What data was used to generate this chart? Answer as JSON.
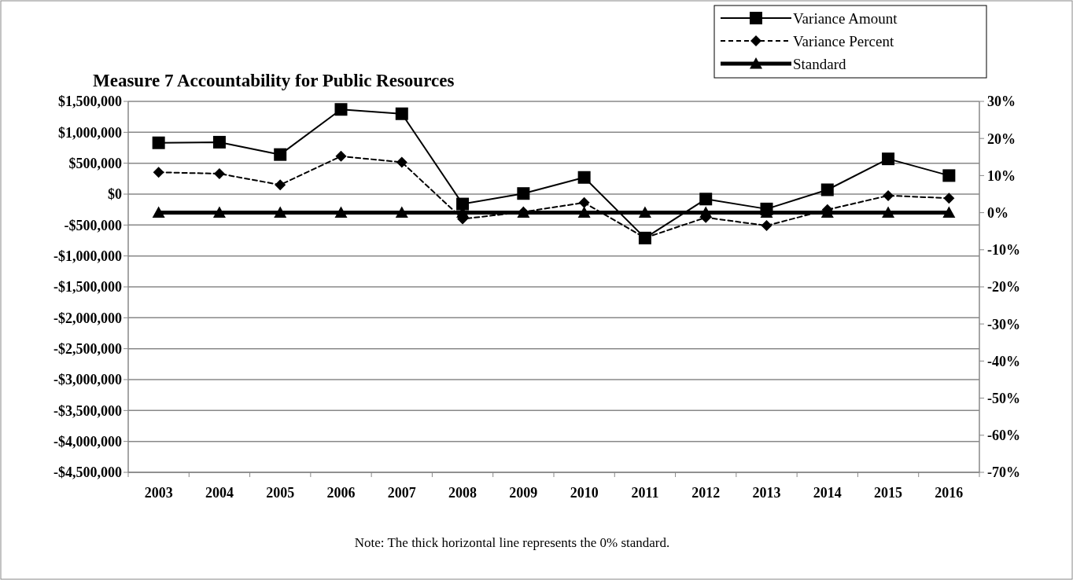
{
  "chart_data": {
    "type": "line",
    "title": "Measure 7 Accountability for Public Resources",
    "categories": [
      "2003",
      "2004",
      "2005",
      "2006",
      "2007",
      "2008",
      "2009",
      "2010",
      "2011",
      "2012",
      "2013",
      "2014",
      "2015",
      "2016"
    ],
    "series": [
      {
        "name": "Variance Amount",
        "color": "#000000",
        "marker": "square",
        "line_style": "solid",
        "values": [
          830000,
          840000,
          640000,
          1370000,
          1300000,
          -160000,
          10000,
          270000,
          -710000,
          -80000,
          -240000,
          70000,
          570000,
          300000
        ]
      },
      {
        "name": "Variance Percent",
        "color": "#000000",
        "marker": "diamond",
        "line_style": "dashed",
        "axis": "y2",
        "values": [
          10.9,
          10.5,
          7.5,
          15.2,
          13.6,
          -1.7,
          0.2,
          2.7,
          -6.8,
          -1.3,
          -3.5,
          0.8,
          4.6,
          3.9
        ]
      },
      {
        "name": "Standard",
        "color": "#000000",
        "marker": "triangle",
        "line_style": "solid",
        "axis": "y2",
        "values": [
          0,
          0,
          0,
          0,
          0,
          0,
          0,
          0,
          0,
          0,
          0,
          0,
          0,
          0
        ]
      }
    ],
    "ylim": [
      -4500000,
      1500000
    ],
    "yticks": [
      {
        "value": -4500000,
        "label": "-$4,500,000"
      },
      {
        "value": -4000000,
        "label": "-$4,000,000"
      },
      {
        "value": -3500000,
        "label": "-$3,500,000"
      },
      {
        "value": -3000000,
        "label": "-$3,000,000"
      },
      {
        "value": -2500000,
        "label": "-$2,500,000"
      },
      {
        "value": -2000000,
        "label": "-$2,000,000"
      },
      {
        "value": -1500000,
        "label": "-$1,500,000"
      },
      {
        "value": -1000000,
        "label": "-$1,000,000"
      },
      {
        "value": -500000,
        "label": "-$500,000"
      },
      {
        "value": 0,
        "label": "$0"
      },
      {
        "value": 500000,
        "label": "$500,000"
      },
      {
        "value": 1000000,
        "label": "$1,000,000"
      },
      {
        "value": 1500000,
        "label": "$1,500,000"
      }
    ],
    "y2lim": [
      -70,
      30
    ],
    "y2ticks": [
      {
        "value": -70,
        "label": "-70%"
      },
      {
        "value": -60,
        "label": "-60%"
      },
      {
        "value": -50,
        "label": "-50%"
      },
      {
        "value": -40,
        "label": "-40%"
      },
      {
        "value": -30,
        "label": "-30%"
      },
      {
        "value": -20,
        "label": "-20%"
      },
      {
        "value": -10,
        "label": "-10%"
      },
      {
        "value": 0,
        "label": "0%"
      },
      {
        "value": 10,
        "label": "10%"
      },
      {
        "value": 20,
        "label": "20%"
      },
      {
        "value": 30,
        "label": "30%"
      }
    ],
    "grid": "y",
    "legend": "top right",
    "annotations": [
      "Note: The thick horizontal line represents the 0% standard."
    ]
  }
}
